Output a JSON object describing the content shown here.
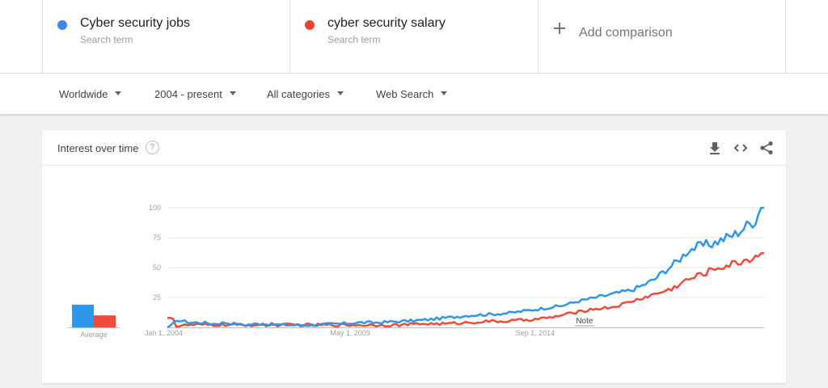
{
  "terms": [
    {
      "name": "Cyber security jobs",
      "sub": "Search term",
      "color": "#4285f4"
    },
    {
      "name": "cyber security salary",
      "sub": "Search term",
      "color": "#ea4335"
    }
  ],
  "add_comparison": "Add comparison",
  "filters": {
    "region": "Worldwide",
    "period": "2004 - present",
    "category": "All categories",
    "property": "Web Search"
  },
  "card": {
    "title": "Interest over time",
    "help": "?",
    "icons": [
      "download-icon",
      "embed-icon",
      "share-icon"
    ]
  },
  "chart_data": {
    "type": "line",
    "x_start": "2004-01",
    "x_step": "month",
    "y_ticks": [
      "25",
      "50",
      "75",
      "100"
    ],
    "x_ticks": [
      {
        "label": "Jan 1, 2004",
        "date": "2004-01"
      },
      {
        "label": "May 1, 2009",
        "date": "2009-05"
      },
      {
        "label": "Sep 1, 2014",
        "date": "2014-09"
      }
    ],
    "ylim": [
      0,
      100
    ],
    "note": {
      "label": "Note",
      "date": "2016-01"
    },
    "average_label": "Average",
    "averages": [
      19,
      10
    ],
    "series": [
      {
        "name": "Cyber security jobs",
        "color": "#2e97ea",
        "keypoints": [
          [
            0,
            0
          ],
          [
            2,
            3
          ],
          [
            4,
            6
          ],
          [
            8,
            4
          ],
          [
            12,
            4
          ],
          [
            16,
            3
          ],
          [
            20,
            4
          ],
          [
            26,
            2
          ],
          [
            32,
            3
          ],
          [
            40,
            2
          ],
          [
            50,
            2
          ],
          [
            60,
            3
          ],
          [
            66,
            4
          ],
          [
            72,
            4
          ],
          [
            80,
            5
          ],
          [
            88,
            6
          ],
          [
            96,
            8
          ],
          [
            104,
            10
          ],
          [
            112,
            11
          ],
          [
            118,
            12
          ],
          [
            124,
            14
          ],
          [
            130,
            16
          ],
          [
            136,
            18
          ],
          [
            142,
            22
          ],
          [
            148,
            25
          ],
          [
            152,
            27
          ],
          [
            156,
            29
          ],
          [
            160,
            31
          ],
          [
            164,
            35
          ],
          [
            168,
            40
          ],
          [
            172,
            48
          ],
          [
            176,
            55
          ],
          [
            180,
            65
          ],
          [
            184,
            68
          ],
          [
            188,
            70
          ],
          [
            192,
            74
          ],
          [
            196,
            78
          ],
          [
            200,
            85
          ],
          [
            203,
            90
          ],
          [
            205,
            100
          ],
          [
            206,
            100
          ]
        ]
      },
      {
        "name": "cyber security salary",
        "color": "#ee4b3b",
        "keypoints": [
          [
            0,
            8
          ],
          [
            2,
            8
          ],
          [
            3,
            1
          ],
          [
            8,
            2
          ],
          [
            16,
            2
          ],
          [
            24,
            2
          ],
          [
            36,
            2
          ],
          [
            50,
            2
          ],
          [
            60,
            2
          ],
          [
            70,
            2
          ],
          [
            80,
            2
          ],
          [
            88,
            3
          ],
          [
            96,
            3
          ],
          [
            104,
            4
          ],
          [
            110,
            5
          ],
          [
            116,
            5
          ],
          [
            122,
            6
          ],
          [
            128,
            7
          ],
          [
            132,
            8
          ],
          [
            136,
            10
          ],
          [
            142,
            13
          ],
          [
            146,
            15
          ],
          [
            150,
            16
          ],
          [
            154,
            17
          ],
          [
            158,
            20
          ],
          [
            162,
            23
          ],
          [
            166,
            26
          ],
          [
            170,
            29
          ],
          [
            174,
            32
          ],
          [
            178,
            38
          ],
          [
            182,
            42
          ],
          [
            186,
            46
          ],
          [
            190,
            50
          ],
          [
            194,
            52
          ],
          [
            198,
            55
          ],
          [
            202,
            58
          ],
          [
            205,
            62
          ],
          [
            206,
            62
          ]
        ]
      }
    ]
  }
}
